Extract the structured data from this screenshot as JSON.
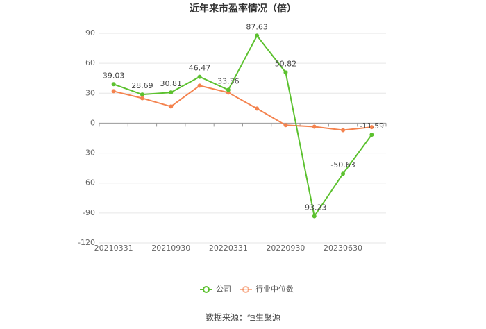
{
  "chart_data": {
    "type": "line",
    "title": "近年来市盈率情况（倍）",
    "categories": [
      "20210331",
      null,
      "20210930",
      null,
      "20220331",
      null,
      "20220930",
      null,
      "20230630",
      null
    ],
    "series": [
      {
        "name": "公司",
        "color": "#5cc12f",
        "values": [
          39.03,
          28.69,
          30.81,
          46.47,
          33.36,
          87.63,
          50.82,
          -93.23,
          -50.63,
          -11.59
        ]
      },
      {
        "name": "行业中位数",
        "color": "#f4834f",
        "values": [
          32,
          25,
          16.7,
          37.6,
          30.6,
          14.6,
          -2,
          -3.5,
          -7,
          -4
        ]
      }
    ],
    "ylim": [
      -120,
      90
    ],
    "yticks": [
      -120,
      -90,
      -60,
      -30,
      0,
      30,
      60,
      90
    ],
    "grid": true,
    "legend": "bottom",
    "source": "数据来源：恒生聚源"
  }
}
